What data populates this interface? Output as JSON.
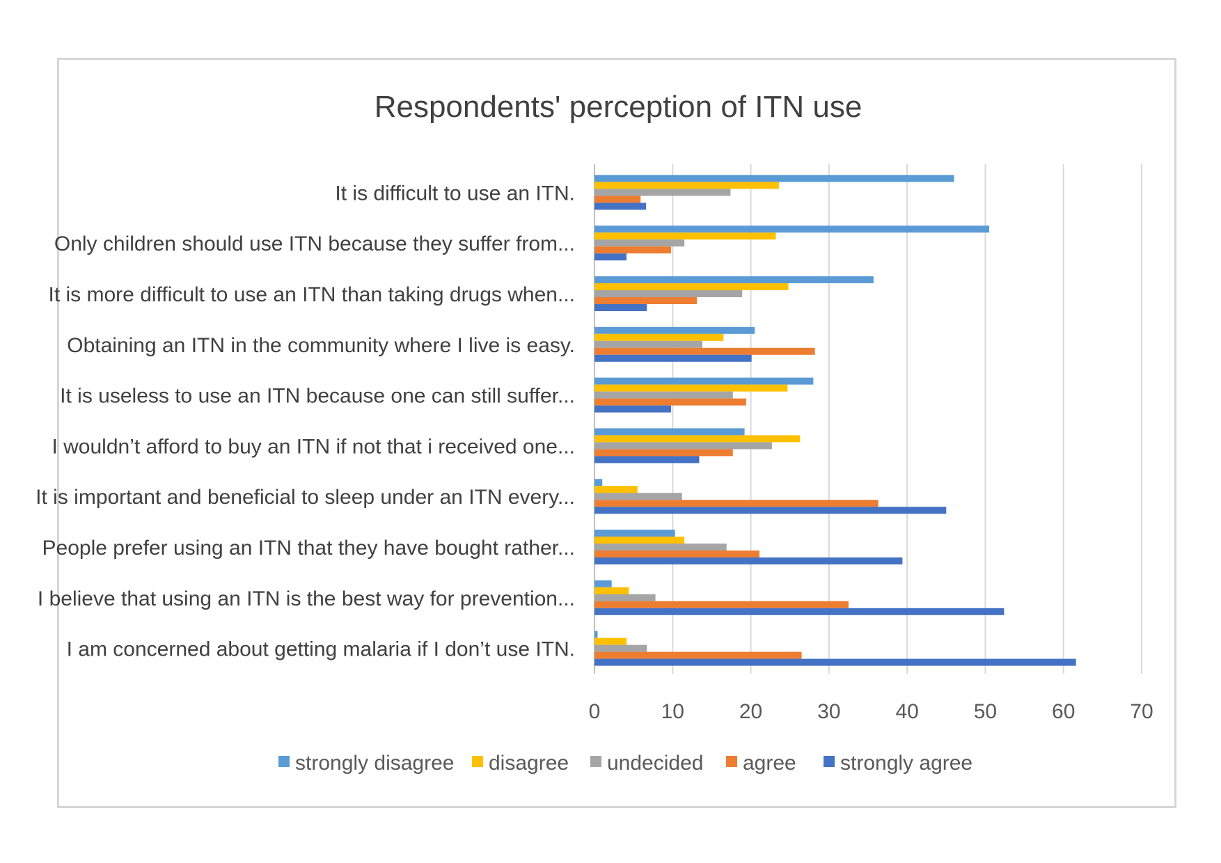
{
  "chart_data": {
    "type": "bar",
    "orientation": "horizontal",
    "title": "Respondents' perception of ITN use",
    "xlabel": "",
    "ylabel": "",
    "xlim": [
      0,
      70
    ],
    "x_ticks": [
      0,
      10,
      20,
      30,
      40,
      50,
      60,
      70
    ],
    "grid": true,
    "legend_position": "bottom",
    "categories": [
      "It is difficult to use an ITN.",
      "Only children should use ITN because they suffer from...",
      "It is more difficult to use an ITN than taking drugs when...",
      "Obtaining an ITN in the community where I live is easy.",
      "It is useless to use an ITN because one can still suffer...",
      "I wouldn’t afford to buy an ITN if not that i received one...",
      "It is important and beneficial to sleep under an ITN every...",
      "People prefer using an ITN that they have bought rather...",
      "I believe that using an ITN is the best way for prevention...",
      "I am concerned about getting malaria if I don’t use ITN."
    ],
    "series": [
      {
        "name": "strongly disagree",
        "color": "#5B9BD5",
        "values": [
          46,
          50.5,
          35.7,
          20.5,
          28,
          19.2,
          1,
          10.3,
          2.2,
          0.4
        ]
      },
      {
        "name": "disagree",
        "color": "#FFC000",
        "values": [
          23.6,
          23.2,
          24.8,
          16.5,
          24.7,
          26.3,
          5.5,
          11.5,
          4.4,
          4.1
        ]
      },
      {
        "name": "undecided",
        "color": "#A5A5A5",
        "values": [
          17.4,
          11.5,
          18.9,
          13.8,
          17.7,
          22.7,
          11.2,
          16.9,
          7.8,
          6.7
        ]
      },
      {
        "name": "agree",
        "color": "#ED7D31",
        "values": [
          5.9,
          9.8,
          13.1,
          28.2,
          19.4,
          17.7,
          36.3,
          21.1,
          32.5,
          26.5
        ]
      },
      {
        "name": "strongly agree",
        "color": "#4472C4",
        "values": [
          6.6,
          4.1,
          6.7,
          20.1,
          9.8,
          13.4,
          45,
          39.4,
          52.4,
          61.6
        ]
      }
    ]
  }
}
